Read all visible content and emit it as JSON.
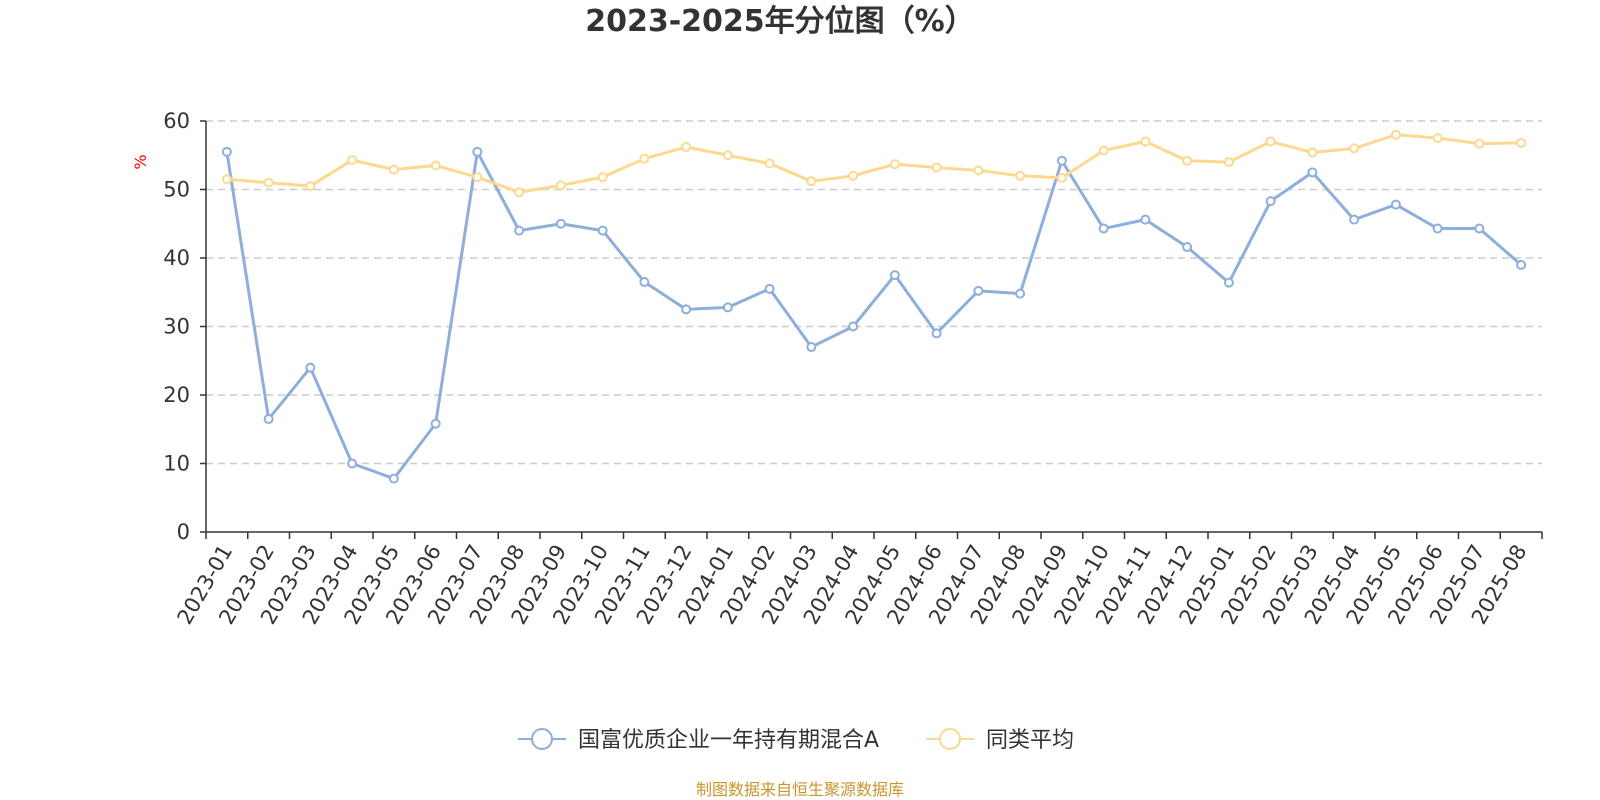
{
  "chart_data": {
    "type": "line",
    "title": "2023-2025年分位图（%）",
    "y_unit": "%",
    "ylim": [
      0,
      60
    ],
    "y_ticks": [
      0,
      10,
      20,
      30,
      40,
      50,
      60
    ],
    "grid": true,
    "legend_position": "bottom-center",
    "categories": [
      "2023-01",
      "2023-02",
      "2023-03",
      "2023-04",
      "2023-05",
      "2023-06",
      "2023-07",
      "2023-08",
      "2023-09",
      "2023-10",
      "2023-11",
      "2023-12",
      "2024-01",
      "2024-02",
      "2024-03",
      "2024-04",
      "2024-05",
      "2024-06",
      "2024-07",
      "2024-08",
      "2024-09",
      "2024-10",
      "2024-11",
      "2024-12",
      "2025-01",
      "2025-02",
      "2025-03",
      "2025-04",
      "2025-05",
      "2025-06",
      "2025-07",
      "2025-08"
    ],
    "series": [
      {
        "name": "国富优质企业一年持有期混合A",
        "color": "#8eaedb",
        "values": [
          55.5,
          16.5,
          24.0,
          10.0,
          7.8,
          15.8,
          55.5,
          44.0,
          45.0,
          44.0,
          36.5,
          32.5,
          32.8,
          35.5,
          27.0,
          30.0,
          37.5,
          29.0,
          35.2,
          34.8,
          54.2,
          44.3,
          45.6,
          41.6,
          36.4,
          48.3,
          52.5,
          45.6,
          47.8,
          44.3,
          44.3,
          39.0
        ]
      },
      {
        "name": "同类平均",
        "color": "#fdd890",
        "values": [
          51.5,
          51.0,
          50.5,
          54.3,
          52.9,
          53.5,
          51.8,
          49.6,
          50.6,
          51.8,
          54.5,
          56.2,
          55.0,
          53.8,
          51.2,
          52.0,
          53.7,
          53.2,
          52.8,
          52.0,
          51.7,
          55.7,
          57.0,
          54.2,
          54.0,
          57.0,
          55.4,
          56.0,
          58.0,
          57.5,
          56.7,
          56.8
        ]
      }
    ]
  },
  "source_note": "制图数据来自恒生聚源数据库",
  "colors": {
    "axis": "#333333",
    "grid": "#cccccc",
    "unit": "#ff0000",
    "source": "#c8962d"
  }
}
